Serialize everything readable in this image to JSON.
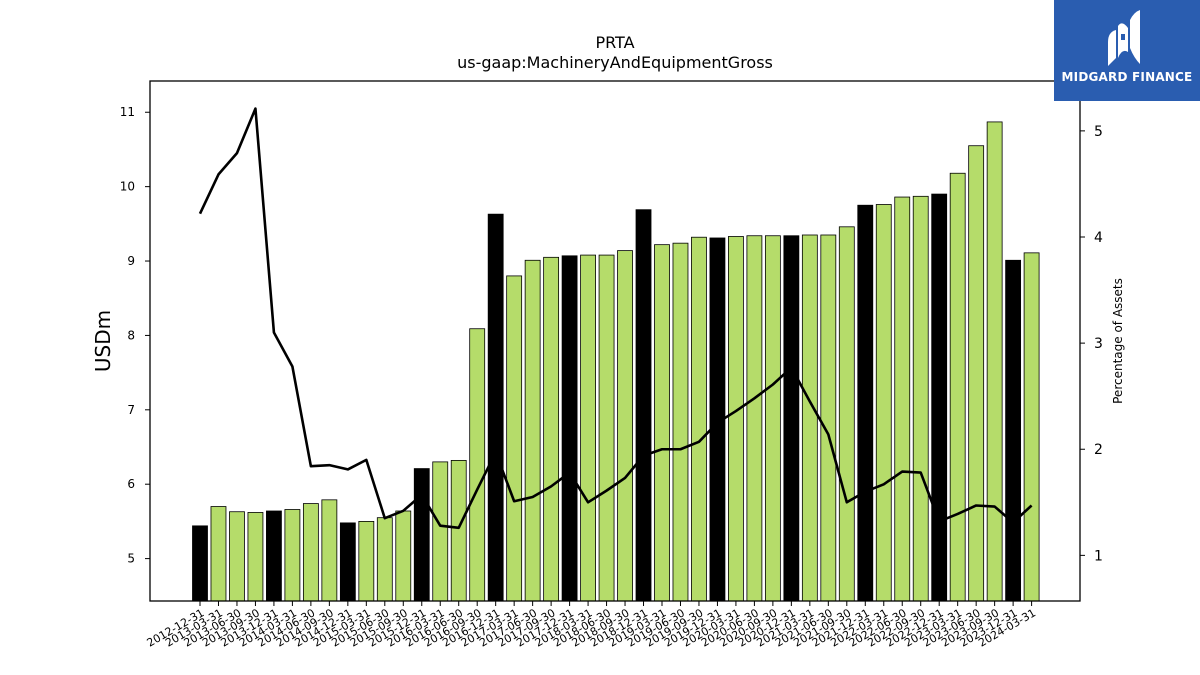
{
  "chart_data": {
    "type": "bar",
    "title": "PRTA",
    "subtitle": "us-gaap:MachineryAndEquipmentGross",
    "ylabel": "USDm",
    "y2label": "Percentage of Assets",
    "ylim": [
      4.43,
      11.42
    ],
    "y2lim": [
      0.57,
      5.47
    ],
    "yticks": [
      5,
      6,
      7,
      8,
      9,
      10,
      11
    ],
    "y2ticks": [
      1,
      2,
      3,
      4,
      5
    ],
    "categories": [
      "2012-12-31",
      "2013-03-31",
      "2013-06-30",
      "2013-09-30",
      "2013-12-31",
      "2014-03-31",
      "2014-06-30",
      "2014-09-30",
      "2014-12-31",
      "2015-03-31",
      "2015-06-30",
      "2015-09-30",
      "2015-12-31",
      "2016-03-31",
      "2016-06-30",
      "2016-09-30",
      "2016-12-31",
      "2017-03-31",
      "2017-06-30",
      "2017-09-30",
      "2017-12-31",
      "2018-03-31",
      "2018-06-30",
      "2018-09-30",
      "2018-12-31",
      "2019-03-31",
      "2019-06-30",
      "2019-09-30",
      "2019-12-31",
      "2020-03-31",
      "2020-06-30",
      "2020-09-30",
      "2020-12-31",
      "2021-03-31",
      "2021-06-30",
      "2021-09-30",
      "2021-12-31",
      "2022-03-31",
      "2022-06-30",
      "2022-09-30",
      "2022-12-31",
      "2023-03-31",
      "2023-06-30",
      "2023-09-30",
      "2023-12-31",
      "2024-03-31"
    ],
    "series": [
      {
        "type": "bar",
        "axis": "left",
        "values": [
          5.44,
          5.7,
          5.63,
          5.62,
          5.64,
          5.66,
          5.74,
          5.79,
          5.48,
          5.5,
          5.55,
          5.64,
          6.21,
          6.3,
          6.32,
          8.09,
          9.63,
          8.8,
          9.01,
          9.05,
          9.07,
          9.08,
          9.08,
          9.14,
          9.69,
          9.22,
          9.24,
          9.32,
          9.31,
          9.33,
          9.34,
          9.34,
          9.34,
          9.35,
          9.35,
          9.46,
          9.75,
          9.76,
          9.86,
          9.87,
          9.9,
          10.18,
          10.55,
          10.87,
          9.01,
          9.11
        ],
        "year_end": [
          true,
          false,
          false,
          false,
          true,
          false,
          false,
          false,
          true,
          false,
          false,
          false,
          true,
          false,
          false,
          false,
          true,
          false,
          false,
          false,
          true,
          false,
          false,
          false,
          true,
          false,
          false,
          false,
          true,
          false,
          false,
          false,
          true,
          false,
          false,
          false,
          true,
          false,
          false,
          false,
          true,
          false,
          false,
          false,
          true,
          false
        ]
      },
      {
        "type": "line",
        "axis": "right",
        "values": [
          4.22,
          4.59,
          4.79,
          5.21,
          3.1,
          2.78,
          1.84,
          1.85,
          1.81,
          1.9,
          1.35,
          1.42,
          1.57,
          1.28,
          1.26,
          1.62,
          1.97,
          1.51,
          1.55,
          1.65,
          1.78,
          1.5,
          1.61,
          1.73,
          1.94,
          2.0,
          2.0,
          2.07,
          2.25,
          2.36,
          2.48,
          2.61,
          2.77,
          2.45,
          2.14,
          1.5,
          1.6,
          1.67,
          1.79,
          1.78,
          1.32,
          1.39,
          1.47,
          1.46,
          1.31,
          1.47
        ]
      }
    ],
    "colors": {
      "bar": "#b5dc6a",
      "bar_year_end": "#000000",
      "line": "#000000"
    },
    "grid": false,
    "legend": "none"
  },
  "logo": {
    "text": "MIDGARD FINANCE",
    "background": "#2a5db0"
  }
}
